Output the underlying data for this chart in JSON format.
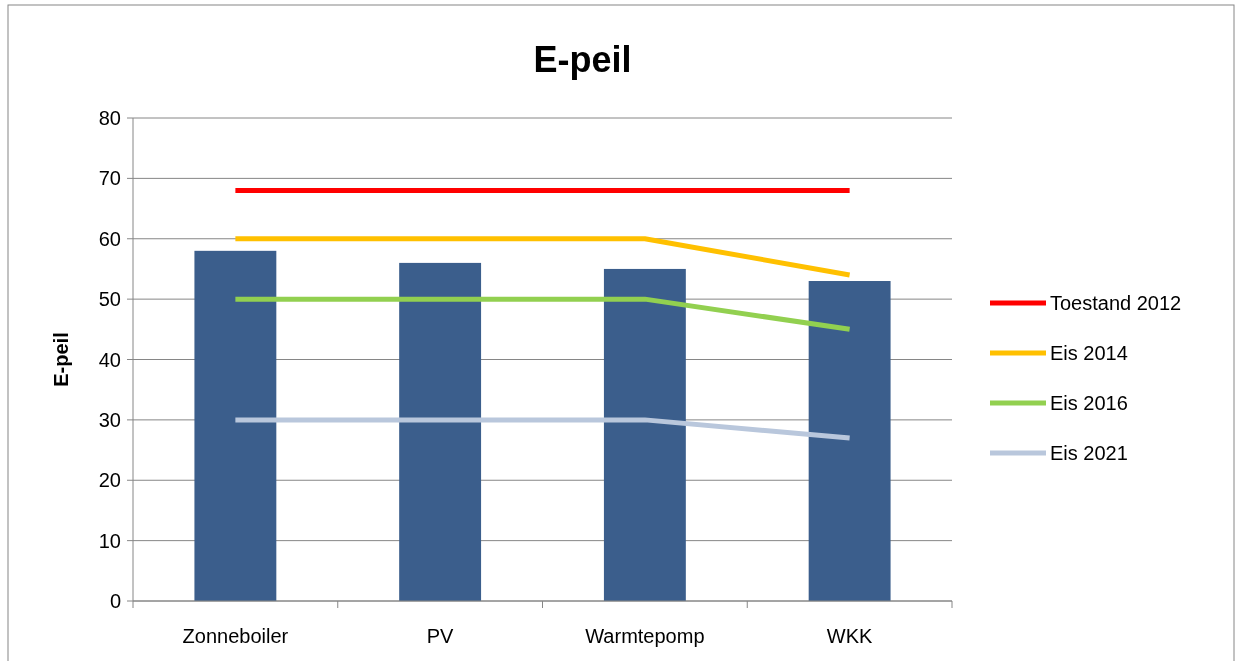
{
  "chart_data": {
    "type": "bar",
    "title": "E-peil",
    "ylabel": "E-peil",
    "categories": [
      "Zonneboiler",
      "PV",
      "Warmtepomp",
      "WKK"
    ],
    "ylim": [
      0,
      80
    ],
    "yticks": [
      0,
      10,
      20,
      30,
      40,
      50,
      60,
      70,
      80
    ],
    "grid": "y",
    "legend": "right",
    "series": [
      {
        "color": "#3b5e8c",
        "values": [
          58,
          56,
          55,
          53
        ]
      },
      {
        "type": "line",
        "name": "Toestand 2012",
        "color": "#ff0000",
        "values": [
          68,
          68,
          68,
          68
        ]
      },
      {
        "type": "line",
        "name": "Eis 2014",
        "color": "#ffc000",
        "values": [
          60,
          60,
          60,
          54
        ]
      },
      {
        "type": "line",
        "name": "Eis 2016",
        "color": "#92d050",
        "values": [
          50,
          50,
          50,
          45
        ]
      },
      {
        "type": "line",
        "name": "Eis 2021",
        "color": "#b9c7dc",
        "values": [
          30,
          30,
          30,
          27
        ]
      }
    ]
  }
}
